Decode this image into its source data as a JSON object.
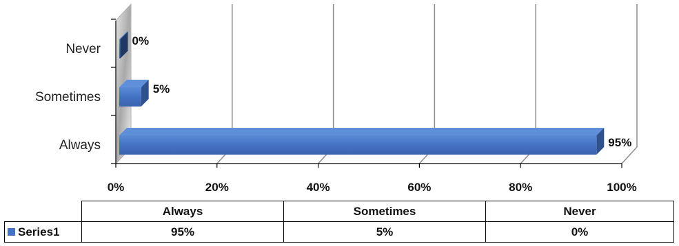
{
  "chart_data": {
    "type": "bar",
    "orientation": "horizontal",
    "three_d": true,
    "categories": [
      "Always",
      "Sometimes",
      "Never"
    ],
    "series": [
      {
        "name": "Series1",
        "values": [
          95,
          5,
          0
        ],
        "color": "#4472c4"
      }
    ],
    "data_labels": [
      "95%",
      "5%",
      "0%"
    ],
    "x_ticks": [
      "0%",
      "20%",
      "40%",
      "60%",
      "80%",
      "100%"
    ],
    "xlim": [
      0,
      100
    ],
    "grid": true,
    "legend": "data-table",
    "data_table": {
      "headers": [
        "Always",
        "Sometimes",
        "Never"
      ],
      "rows": [
        {
          "series": "Series1",
          "cells": [
            "95%",
            "5%",
            "0%"
          ]
        }
      ]
    }
  }
}
